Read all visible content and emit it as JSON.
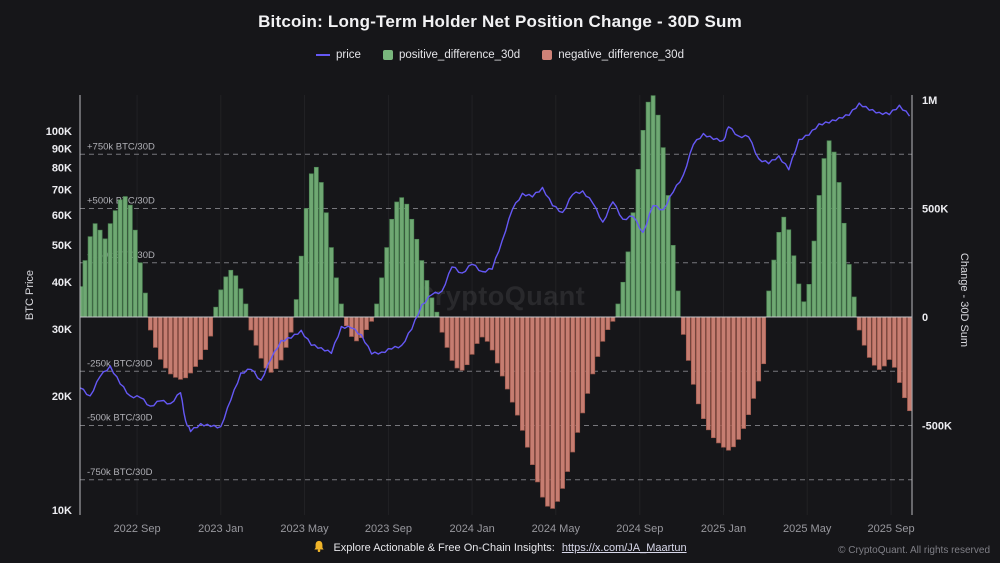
{
  "title": "Bitcoin: Long-Term Holder Net Position Change - 30D Sum",
  "legend": {
    "price": "price",
    "positive": "positive_difference_30d",
    "negative": "negative_difference_30d"
  },
  "watermark": "CryptoQuant",
  "footer": {
    "icon": "bell-icon",
    "insight_text": "Explore Actionable & Free On-Chain Insights:",
    "link_text": "https://x.com/JA_Maartun",
    "copyright": "© CryptoQuant. All rights reserved"
  },
  "colors": {
    "background": "#161619",
    "price": "#6558f5",
    "positive": "#6fa873",
    "positive_edge": "#4f8a57",
    "positive_legend": "#79b77d",
    "negative": "#c67d71",
    "negative_edge": "#a05a4e",
    "negative_legend": "#cf8277",
    "guide": "#77777c",
    "guide_text": "#b0b0b6",
    "zero_line": "#c2c2c6",
    "spine": "#b9b9be",
    "tick_text": "#ededf1",
    "x_tick_text": "#98989e",
    "link": "#d8d8ea",
    "bell": "#f0b429"
  },
  "chart_data": {
    "type": "bar+line",
    "title": "Bitcoin: Long-Term Holder Net Position Change - 30D Sum",
    "units": {
      "bars": "BTC net position change, 30D sum, thousands",
      "price": "BTC price, thousands USD",
      "x": "decimal year"
    },
    "left_axis": {
      "label": "BTC Price",
      "scale": "log",
      "ticks": [
        {
          "v": 100,
          "label": "100K"
        },
        {
          "v": 90,
          "label": "90K"
        },
        {
          "v": 80,
          "label": "80K"
        },
        {
          "v": 70,
          "label": "70K"
        },
        {
          "v": 60,
          "label": "60K"
        },
        {
          "v": 50,
          "label": "50K"
        },
        {
          "v": 40,
          "label": "40K"
        },
        {
          "v": 30,
          "label": "30K"
        },
        {
          "v": 20,
          "label": "20K"
        },
        {
          "v": 10,
          "label": "10K"
        }
      ]
    },
    "right_axis": {
      "label": "Change - 30D Sum",
      "scale": "linear",
      "ticks": [
        {
          "v": 1000,
          "label": "1M"
        },
        {
          "v": 500,
          "label": "500K"
        },
        {
          "v": 0,
          "label": "0"
        },
        {
          "v": -500,
          "label": "-500K"
        }
      ]
    },
    "guides": [
      {
        "v": 750,
        "label": "+750k BTC/30D"
      },
      {
        "v": 500,
        "label": "+500k BTC/30D"
      },
      {
        "v": 250,
        "label": "+250k BTC/30D"
      },
      {
        "v": -250,
        "label": "-250k BTC/30D"
      },
      {
        "v": -500,
        "label": "-500k BTC/30D"
      },
      {
        "v": -750,
        "label": "-750k BTC/30D"
      }
    ],
    "x_axis": {
      "domain": [
        2022.44,
        2025.75
      ],
      "ticks": [
        {
          "v": 2022.667,
          "label": "2022 Sep"
        },
        {
          "v": 2023.0,
          "label": "2023 Jan"
        },
        {
          "v": 2023.333,
          "label": "2023 May"
        },
        {
          "v": 2023.667,
          "label": "2023 Sep"
        },
        {
          "v": 2024.0,
          "label": "2024 Jan"
        },
        {
          "v": 2024.333,
          "label": "2024 May"
        },
        {
          "v": 2024.667,
          "label": "2024 Sep"
        },
        {
          "v": 2025.0,
          "label": "2025 Jan"
        },
        {
          "v": 2025.333,
          "label": "2025 May"
        },
        {
          "v": 2025.667,
          "label": "2025 Sep"
        }
      ]
    },
    "series": [
      {
        "name": "net_position_change_30d",
        "type": "bar",
        "axis": "right",
        "points": [
          [
            2022.44,
            140
          ],
          [
            2022.46,
            260
          ],
          [
            2022.48,
            370
          ],
          [
            2022.5,
            430
          ],
          [
            2022.52,
            400
          ],
          [
            2022.54,
            360
          ],
          [
            2022.56,
            430
          ],
          [
            2022.58,
            490
          ],
          [
            2022.6,
            540
          ],
          [
            2022.62,
            555
          ],
          [
            2022.64,
            515
          ],
          [
            2022.66,
            400
          ],
          [
            2022.68,
            250
          ],
          [
            2022.7,
            110
          ],
          [
            2022.72,
            -60
          ],
          [
            2022.74,
            -140
          ],
          [
            2022.76,
            -195
          ],
          [
            2022.78,
            -235
          ],
          [
            2022.8,
            -262
          ],
          [
            2022.82,
            -278
          ],
          [
            2022.84,
            -287
          ],
          [
            2022.86,
            -280
          ],
          [
            2022.88,
            -258
          ],
          [
            2022.9,
            -228
          ],
          [
            2022.92,
            -196
          ],
          [
            2022.94,
            -150
          ],
          [
            2022.96,
            -88
          ],
          [
            2022.98,
            45
          ],
          [
            2023.0,
            125
          ],
          [
            2023.02,
            185
          ],
          [
            2023.04,
            215
          ],
          [
            2023.06,
            190
          ],
          [
            2023.08,
            130
          ],
          [
            2023.1,
            60
          ],
          [
            2023.12,
            -60
          ],
          [
            2023.14,
            -130
          ],
          [
            2023.16,
            -190
          ],
          [
            2023.18,
            -235
          ],
          [
            2023.2,
            -255
          ],
          [
            2023.22,
            -238
          ],
          [
            2023.24,
            -198
          ],
          [
            2023.26,
            -140
          ],
          [
            2023.28,
            -70
          ],
          [
            2023.3,
            80
          ],
          [
            2023.32,
            280
          ],
          [
            2023.34,
            500
          ],
          [
            2023.36,
            660
          ],
          [
            2023.38,
            690
          ],
          [
            2023.4,
            620
          ],
          [
            2023.42,
            480
          ],
          [
            2023.44,
            320
          ],
          [
            2023.46,
            180
          ],
          [
            2023.48,
            60
          ],
          [
            2023.5,
            -40
          ],
          [
            2023.52,
            -90
          ],
          [
            2023.54,
            -110
          ],
          [
            2023.56,
            -95
          ],
          [
            2023.58,
            -58
          ],
          [
            2023.6,
            -20
          ],
          [
            2023.62,
            60
          ],
          [
            2023.64,
            180
          ],
          [
            2023.66,
            320
          ],
          [
            2023.68,
            450
          ],
          [
            2023.7,
            530
          ],
          [
            2023.72,
            550
          ],
          [
            2023.74,
            520
          ],
          [
            2023.76,
            450
          ],
          [
            2023.78,
            358
          ],
          [
            2023.8,
            260
          ],
          [
            2023.82,
            168
          ],
          [
            2023.84,
            88
          ],
          [
            2023.86,
            22
          ],
          [
            2023.88,
            -70
          ],
          [
            2023.9,
            -140
          ],
          [
            2023.92,
            -200
          ],
          [
            2023.94,
            -235
          ],
          [
            2023.96,
            -245
          ],
          [
            2023.98,
            -220
          ],
          [
            2024.0,
            -172
          ],
          [
            2024.02,
            -122
          ],
          [
            2024.04,
            -92
          ],
          [
            2024.06,
            -112
          ],
          [
            2024.08,
            -152
          ],
          [
            2024.1,
            -212
          ],
          [
            2024.12,
            -272
          ],
          [
            2024.14,
            -332
          ],
          [
            2024.16,
            -392
          ],
          [
            2024.18,
            -452
          ],
          [
            2024.2,
            -522
          ],
          [
            2024.22,
            -600
          ],
          [
            2024.24,
            -680
          ],
          [
            2024.26,
            -760
          ],
          [
            2024.28,
            -830
          ],
          [
            2024.3,
            -872
          ],
          [
            2024.32,
            -882
          ],
          [
            2024.34,
            -850
          ],
          [
            2024.36,
            -790
          ],
          [
            2024.38,
            -712
          ],
          [
            2024.4,
            -622
          ],
          [
            2024.42,
            -532
          ],
          [
            2024.44,
            -442
          ],
          [
            2024.46,
            -352
          ],
          [
            2024.48,
            -262
          ],
          [
            2024.5,
            -182
          ],
          [
            2024.52,
            -112
          ],
          [
            2024.54,
            -58
          ],
          [
            2024.56,
            -20
          ],
          [
            2024.58,
            60
          ],
          [
            2024.6,
            160
          ],
          [
            2024.62,
            300
          ],
          [
            2024.64,
            480
          ],
          [
            2024.66,
            680
          ],
          [
            2024.68,
            860
          ],
          [
            2024.7,
            990
          ],
          [
            2024.72,
            1020
          ],
          [
            2024.74,
            930
          ],
          [
            2024.76,
            780
          ],
          [
            2024.78,
            560
          ],
          [
            2024.8,
            330
          ],
          [
            2024.82,
            120
          ],
          [
            2024.84,
            -80
          ],
          [
            2024.86,
            -200
          ],
          [
            2024.88,
            -310
          ],
          [
            2024.9,
            -400
          ],
          [
            2024.92,
            -468
          ],
          [
            2024.94,
            -520
          ],
          [
            2024.96,
            -556
          ],
          [
            2024.98,
            -580
          ],
          [
            2025.0,
            -600
          ],
          [
            2025.02,
            -614
          ],
          [
            2025.04,
            -598
          ],
          [
            2025.06,
            -564
          ],
          [
            2025.08,
            -514
          ],
          [
            2025.1,
            -450
          ],
          [
            2025.12,
            -375
          ],
          [
            2025.14,
            -295
          ],
          [
            2025.16,
            -215
          ],
          [
            2025.18,
            120
          ],
          [
            2025.2,
            262
          ],
          [
            2025.22,
            390
          ],
          [
            2025.24,
            460
          ],
          [
            2025.26,
            402
          ],
          [
            2025.28,
            282
          ],
          [
            2025.3,
            152
          ],
          [
            2025.32,
            70
          ],
          [
            2025.34,
            150
          ],
          [
            2025.36,
            350
          ],
          [
            2025.38,
            560
          ],
          [
            2025.4,
            730
          ],
          [
            2025.42,
            812
          ],
          [
            2025.44,
            760
          ],
          [
            2025.46,
            620
          ],
          [
            2025.48,
            432
          ],
          [
            2025.5,
            242
          ],
          [
            2025.52,
            92
          ],
          [
            2025.54,
            -60
          ],
          [
            2025.56,
            -130
          ],
          [
            2025.58,
            -186
          ],
          [
            2025.6,
            -222
          ],
          [
            2025.62,
            -242
          ],
          [
            2025.64,
            -226
          ],
          [
            2025.66,
            -196
          ],
          [
            2025.68,
            -232
          ],
          [
            2025.7,
            -302
          ],
          [
            2025.72,
            -372
          ],
          [
            2025.74,
            -432
          ]
        ]
      },
      {
        "name": "price",
        "type": "line",
        "axis": "left",
        "points": [
          [
            2022.44,
            21.0
          ],
          [
            2022.48,
            20.0
          ],
          [
            2022.52,
            22.5
          ],
          [
            2022.56,
            24.0
          ],
          [
            2022.6,
            21.5
          ],
          [
            2022.64,
            20.0
          ],
          [
            2022.68,
            19.8
          ],
          [
            2022.72,
            18.8
          ],
          [
            2022.76,
            19.4
          ],
          [
            2022.8,
            19.1
          ],
          [
            2022.84,
            20.4
          ],
          [
            2022.86,
            17.2
          ],
          [
            2022.88,
            16.1
          ],
          [
            2022.92,
            16.9
          ],
          [
            2022.96,
            16.6
          ],
          [
            2023.0,
            16.6
          ],
          [
            2023.04,
            19.5
          ],
          [
            2023.08,
            23.0
          ],
          [
            2023.12,
            23.5
          ],
          [
            2023.16,
            22.0
          ],
          [
            2023.2,
            25.0
          ],
          [
            2023.24,
            28.0
          ],
          [
            2023.28,
            28.4
          ],
          [
            2023.32,
            29.8
          ],
          [
            2023.36,
            27.2
          ],
          [
            2023.4,
            26.8
          ],
          [
            2023.44,
            25.9
          ],
          [
            2023.48,
            30.5
          ],
          [
            2023.52,
            30.2
          ],
          [
            2023.56,
            29.0
          ],
          [
            2023.6,
            25.8
          ],
          [
            2023.64,
            26.1
          ],
          [
            2023.68,
            26.6
          ],
          [
            2023.72,
            27.2
          ],
          [
            2023.76,
            30.0
          ],
          [
            2023.8,
            34.8
          ],
          [
            2023.84,
            37.0
          ],
          [
            2023.88,
            37.8
          ],
          [
            2023.92,
            43.8
          ],
          [
            2023.96,
            42.2
          ],
          [
            2024.0,
            44.5
          ],
          [
            2024.04,
            42.6
          ],
          [
            2024.08,
            43.2
          ],
          [
            2024.12,
            51.5
          ],
          [
            2024.16,
            62.0
          ],
          [
            2024.2,
            68.5
          ],
          [
            2024.24,
            67.0
          ],
          [
            2024.28,
            71.0
          ],
          [
            2024.32,
            63.5
          ],
          [
            2024.36,
            61.0
          ],
          [
            2024.4,
            68.0
          ],
          [
            2024.44,
            69.5
          ],
          [
            2024.48,
            64.5
          ],
          [
            2024.52,
            57.5
          ],
          [
            2024.56,
            65.0
          ],
          [
            2024.6,
            58.5
          ],
          [
            2024.64,
            59.5
          ],
          [
            2024.68,
            54.0
          ],
          [
            2024.72,
            63.5
          ],
          [
            2024.76,
            62.0
          ],
          [
            2024.8,
            69.0
          ],
          [
            2024.84,
            76.5
          ],
          [
            2024.88,
            92.0
          ],
          [
            2024.92,
            98.5
          ],
          [
            2024.96,
            95.0
          ],
          [
            2025.0,
            94.5
          ],
          [
            2025.02,
            102.5
          ],
          [
            2025.06,
            97.0
          ],
          [
            2025.1,
            96.5
          ],
          [
            2025.14,
            84.5
          ],
          [
            2025.18,
            82.0
          ],
          [
            2025.22,
            86.0
          ],
          [
            2025.26,
            79.0
          ],
          [
            2025.3,
            95.0
          ],
          [
            2025.34,
            97.5
          ],
          [
            2025.38,
            104.5
          ],
          [
            2025.42,
            105.0
          ],
          [
            2025.46,
            108.5
          ],
          [
            2025.5,
            110.0
          ],
          [
            2025.54,
            118.5
          ],
          [
            2025.58,
            113.5
          ],
          [
            2025.62,
            112.0
          ],
          [
            2025.66,
            110.5
          ],
          [
            2025.7,
            117.0
          ],
          [
            2025.74,
            109.5
          ]
        ]
      }
    ]
  }
}
